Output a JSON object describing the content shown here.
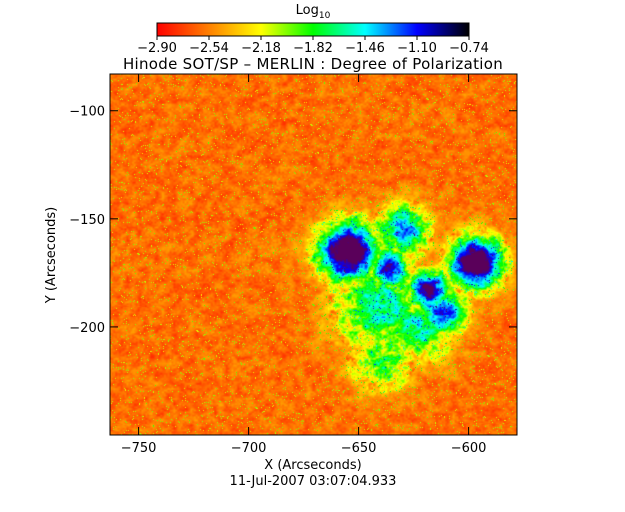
{
  "chart_data": {
    "type": "heatmap",
    "title": "Hinode SOT/SP – MERLIN : Degree of Polarization",
    "xlabel": "X (Arcseconds)",
    "ylabel": "Y (Arcseconds)",
    "footer": "11-Jul-2007 03:07:04.933",
    "colorbar": {
      "label_main": "Log",
      "label_sub": "10",
      "range": [
        -2.9,
        -0.74
      ],
      "ticks": [
        "−2.90",
        "−2.54",
        "−2.18",
        "−1.82",
        "−1.46",
        "−1.10",
        "−0.74"
      ],
      "tick_values": [
        -2.9,
        -2.54,
        -2.18,
        -1.82,
        -1.46,
        -1.1,
        -0.74
      ],
      "colormap": [
        "#ff0000",
        "#ff8000",
        "#ffff00",
        "#00ff00",
        "#00ffff",
        "#0000ff",
        "#000000"
      ]
    },
    "x_axis": {
      "range": [
        -763,
        -578
      ],
      "ticks": [
        -750,
        -700,
        -650,
        -600
      ],
      "tick_labels": [
        "−750",
        "−700",
        "−650",
        "−600"
      ]
    },
    "y_axis": {
      "range": [
        -250,
        -83
      ],
      "ticks": [
        -100,
        -150,
        -200
      ],
      "tick_labels": [
        "−100",
        "−150",
        "−200"
      ]
    },
    "features": [
      {
        "x": -655,
        "y": -165,
        "sigma": 9,
        "amp": 1.0
      },
      {
        "x": -597,
        "y": -170,
        "sigma": 8,
        "amp": 1.0
      },
      {
        "x": -618,
        "y": -183,
        "sigma": 6,
        "amp": 0.85
      },
      {
        "x": -636,
        "y": -173,
        "sigma": 6,
        "amp": 0.75
      },
      {
        "x": -612,
        "y": -193,
        "sigma": 7,
        "amp": 0.7
      },
      {
        "x": -630,
        "y": -155,
        "sigma": 8,
        "amp": 0.55
      },
      {
        "x": -622,
        "y": -200,
        "sigma": 10,
        "amp": 0.45
      },
      {
        "x": -640,
        "y": -215,
        "sigma": 10,
        "amp": 0.35
      },
      {
        "x": -640,
        "y": -190,
        "sigma": 14,
        "amp": 0.45
      }
    ]
  }
}
